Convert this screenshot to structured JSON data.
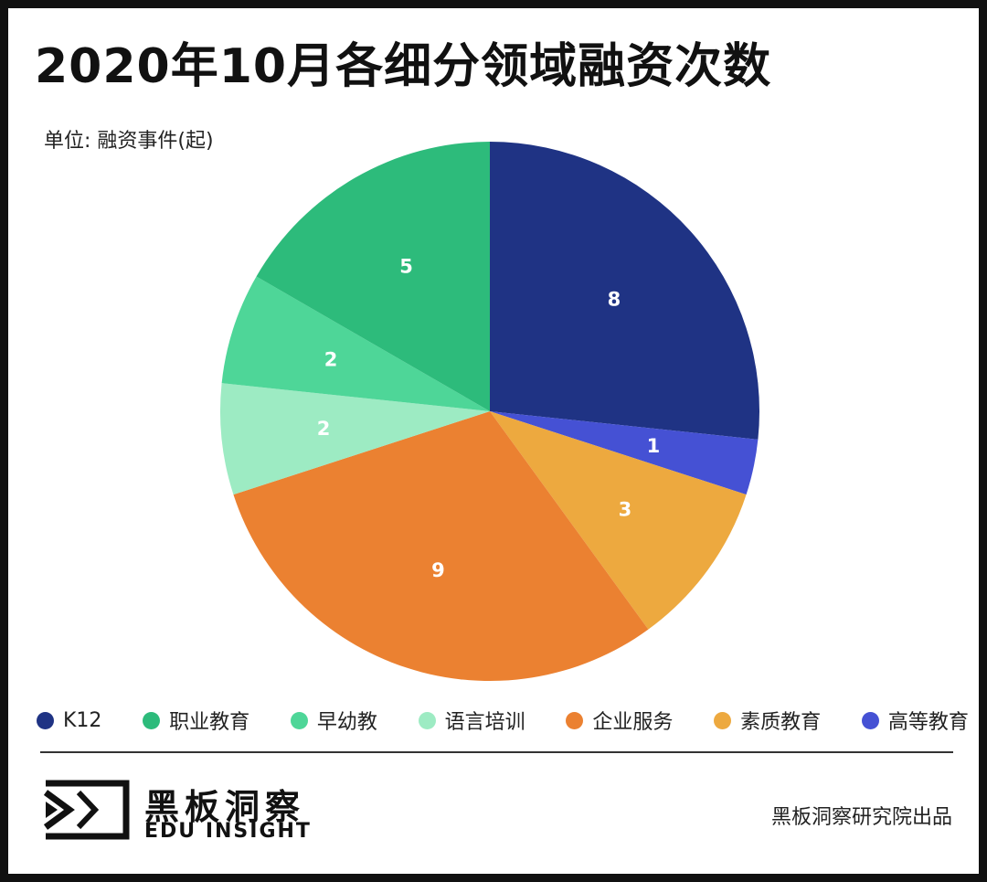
{
  "header": {
    "title": "2020年10月各细分领域融资次数",
    "unit": "单位: 融资事件(起)"
  },
  "chart_data": {
    "type": "pie",
    "title": "2020年10月各细分领域融资次数",
    "unit": "单位: 融资事件(起)",
    "categories": [
      "K12",
      "高等教育",
      "素质教育",
      "企业服务",
      "语言培训",
      "早幼教",
      "职业教育"
    ],
    "values": [
      8,
      1,
      3,
      9,
      2,
      2,
      5
    ],
    "colors": [
      "#1f3384",
      "#4551d4",
      "#eda93f",
      "#eb8131",
      "#9debc3",
      "#4ed698",
      "#2dbb7b"
    ],
    "start_angle_deg": 0,
    "direction": "clockwise",
    "legend_position": "bottom",
    "legend": [
      {
        "label": "K12",
        "color": "#1f3384"
      },
      {
        "label": "职业教育",
        "color": "#2dbb7b"
      },
      {
        "label": "早幼教",
        "color": "#4ed698"
      },
      {
        "label": "语言培训",
        "color": "#9debc3"
      },
      {
        "label": "企业服务",
        "color": "#eb8131"
      },
      {
        "label": "素质教育",
        "color": "#eda93f"
      },
      {
        "label": "高等教育",
        "color": "#4551d4"
      }
    ]
  },
  "footer": {
    "brand_cn": "黑板洞察",
    "brand_en": "EDU INSIGHT",
    "credit": "黑板洞察研究院出品",
    "logo_icon": "edu-insight-logo-icon"
  }
}
